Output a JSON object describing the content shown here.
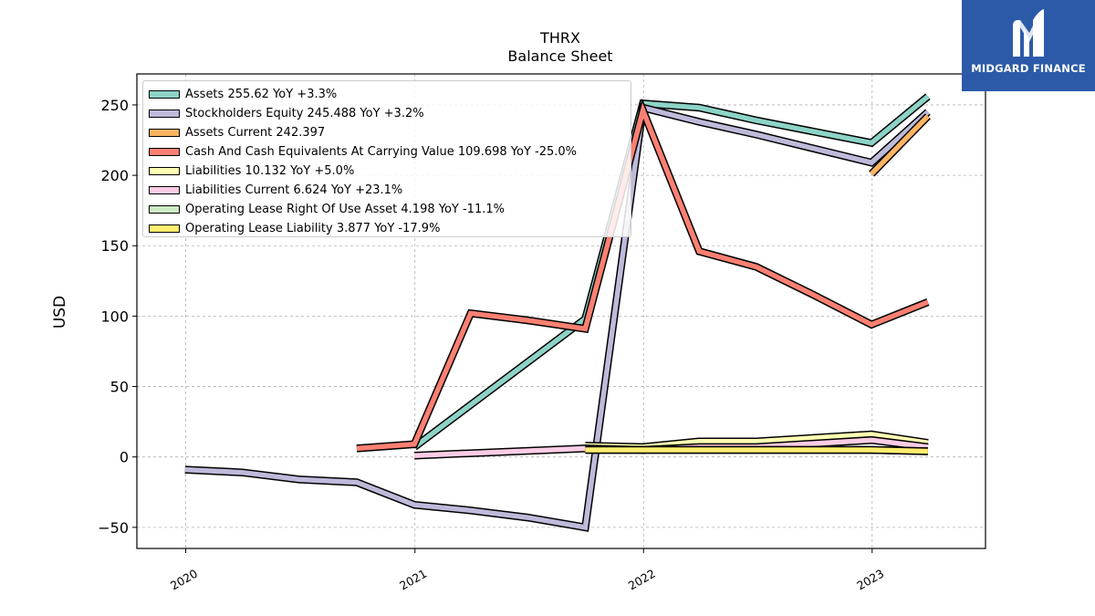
{
  "chart_data": {
    "type": "line",
    "title": "THRX",
    "subtitle": "Balance  Sheet",
    "ylabel": "USD",
    "xlabel": "",
    "ylim": [
      -65,
      272
    ],
    "xlim": [
      "2019-10-15",
      "2023-07-01"
    ],
    "grid": true,
    "legend_position": "top-left",
    "x_ticks": [
      "2020-01-01",
      "2021-01-01",
      "2022-01-01",
      "2023-01-01"
    ],
    "x_tick_labels": [
      "2020",
      "2021",
      "2022",
      "2023"
    ],
    "y_ticks": [
      -50,
      0,
      50,
      100,
      150,
      200,
      250
    ],
    "y_tick_labels": [
      "−50",
      "0",
      "50",
      "100",
      "150",
      "200",
      "250"
    ],
    "series": [
      {
        "name": "Assets",
        "legend": "Assets  255.62 YoY +3.3%",
        "color": "#8dd3c7",
        "points": [
          [
            "2020-12-31",
            7
          ],
          [
            "2021-09-30",
            98
          ],
          [
            "2021-12-31",
            251
          ],
          [
            "2022-03-31",
            248
          ],
          [
            "2022-06-30",
            239
          ],
          [
            "2022-12-31",
            223
          ],
          [
            "2023-03-31",
            256
          ]
        ]
      },
      {
        "name": "Stockholders Equity",
        "legend": "Stockholders Equity  245.488 YoY +3.2%",
        "color": "#bebada",
        "points": [
          [
            "2019-12-31",
            -9
          ],
          [
            "2020-03-31",
            -11
          ],
          [
            "2020-06-30",
            -16
          ],
          [
            "2020-09-30",
            -18
          ],
          [
            "2020-12-31",
            -34
          ],
          [
            "2021-03-31",
            -38
          ],
          [
            "2021-06-30",
            -43
          ],
          [
            "2021-09-30",
            -50
          ],
          [
            "2021-12-31",
            248
          ],
          [
            "2022-03-31",
            238
          ],
          [
            "2022-06-30",
            229
          ],
          [
            "2022-12-31",
            209
          ],
          [
            "2023-03-31",
            245
          ]
        ]
      },
      {
        "name": "Assets Current",
        "legend": "Assets Current  242.397",
        "color": "#fdb462",
        "points": [
          [
            "2022-12-31",
            201
          ],
          [
            "2023-03-31",
            242
          ]
        ]
      },
      {
        "name": "Cash And Cash Equivalents At Carrying Value",
        "legend": "Cash And Cash Equivalents At Carrying Value  109.698 YoY -25.0%",
        "color": "#fb8072",
        "points": [
          [
            "2020-09-30",
            6
          ],
          [
            "2020-12-31",
            9
          ],
          [
            "2021-03-31",
            102
          ],
          [
            "2021-06-30",
            97
          ],
          [
            "2021-09-30",
            91
          ],
          [
            "2021-12-31",
            246
          ],
          [
            "2022-03-31",
            146
          ],
          [
            "2022-06-30",
            135
          ],
          [
            "2022-09-30",
            115
          ],
          [
            "2022-12-31",
            94
          ],
          [
            "2023-03-31",
            110
          ]
        ]
      },
      {
        "name": "Liabilities",
        "legend": "Liabilities  10.132 YoY +5.0%",
        "color": "#ffffb3",
        "points": [
          [
            "2021-09-30",
            8
          ],
          [
            "2021-12-31",
            7
          ],
          [
            "2022-03-31",
            11
          ],
          [
            "2022-06-30",
            11
          ],
          [
            "2022-12-31",
            16
          ],
          [
            "2023-03-31",
            10
          ]
        ]
      },
      {
        "name": "Liabilities Current",
        "legend": "Liabilities Current  6.624 YoY +23.1%",
        "color": "#fccde5",
        "points": [
          [
            "2020-12-31",
            1
          ],
          [
            "2021-09-30",
            6
          ],
          [
            "2021-12-31",
            5
          ],
          [
            "2022-03-31",
            7
          ],
          [
            "2022-06-30",
            7
          ],
          [
            "2022-12-31",
            12
          ],
          [
            "2023-03-31",
            7
          ]
        ]
      },
      {
        "name": "Operating Lease Right Of Use Asset",
        "legend": "Operating Lease Right Of Use Asset  4.198 YoY -11.1%",
        "color": "#ccebc5",
        "points": [
          [
            "2021-09-30",
            5
          ],
          [
            "2021-12-31",
            5
          ],
          [
            "2022-12-31",
            5
          ],
          [
            "2023-03-31",
            4
          ]
        ]
      },
      {
        "name": "Operating Lease Liability",
        "legend": "Operating Lease Liability  3.877 YoY -17.9%",
        "color": "#ffed6f",
        "points": [
          [
            "2021-09-30",
            5
          ],
          [
            "2021-12-31",
            5
          ],
          [
            "2022-12-31",
            5
          ],
          [
            "2023-03-31",
            4
          ]
        ]
      }
    ]
  },
  "logo": {
    "text": "MIDGARD FINANCE",
    "background": "#2c5aa8",
    "icon": "midgard-m-logo-icon"
  }
}
